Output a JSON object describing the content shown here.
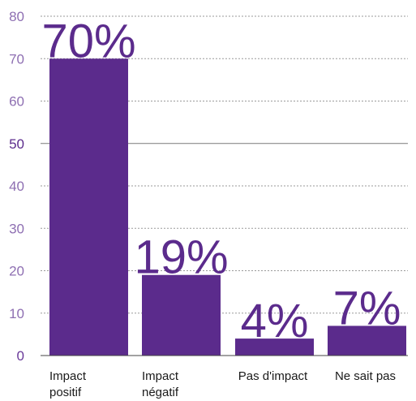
{
  "chart_data": {
    "type": "bar",
    "categories": [
      [
        "Impact",
        "positif"
      ],
      [
        "Impact",
        "négatif"
      ],
      [
        "Pas d'impact"
      ],
      [
        "Ne sait pas"
      ]
    ],
    "values": [
      70,
      19,
      4,
      7
    ],
    "value_labels": [
      "70%",
      "19%",
      "4%",
      "7%"
    ],
    "ylim": [
      0,
      80
    ],
    "yticks": [
      0,
      10,
      20,
      30,
      40,
      50,
      60,
      70,
      80
    ],
    "grid": true,
    "title": "",
    "xlabel": "",
    "ylabel": "",
    "colors": {
      "bar": "#5b2b8c",
      "tick_minor": "#8e6fb2",
      "tick_major": "#5b2b8c"
    }
  }
}
